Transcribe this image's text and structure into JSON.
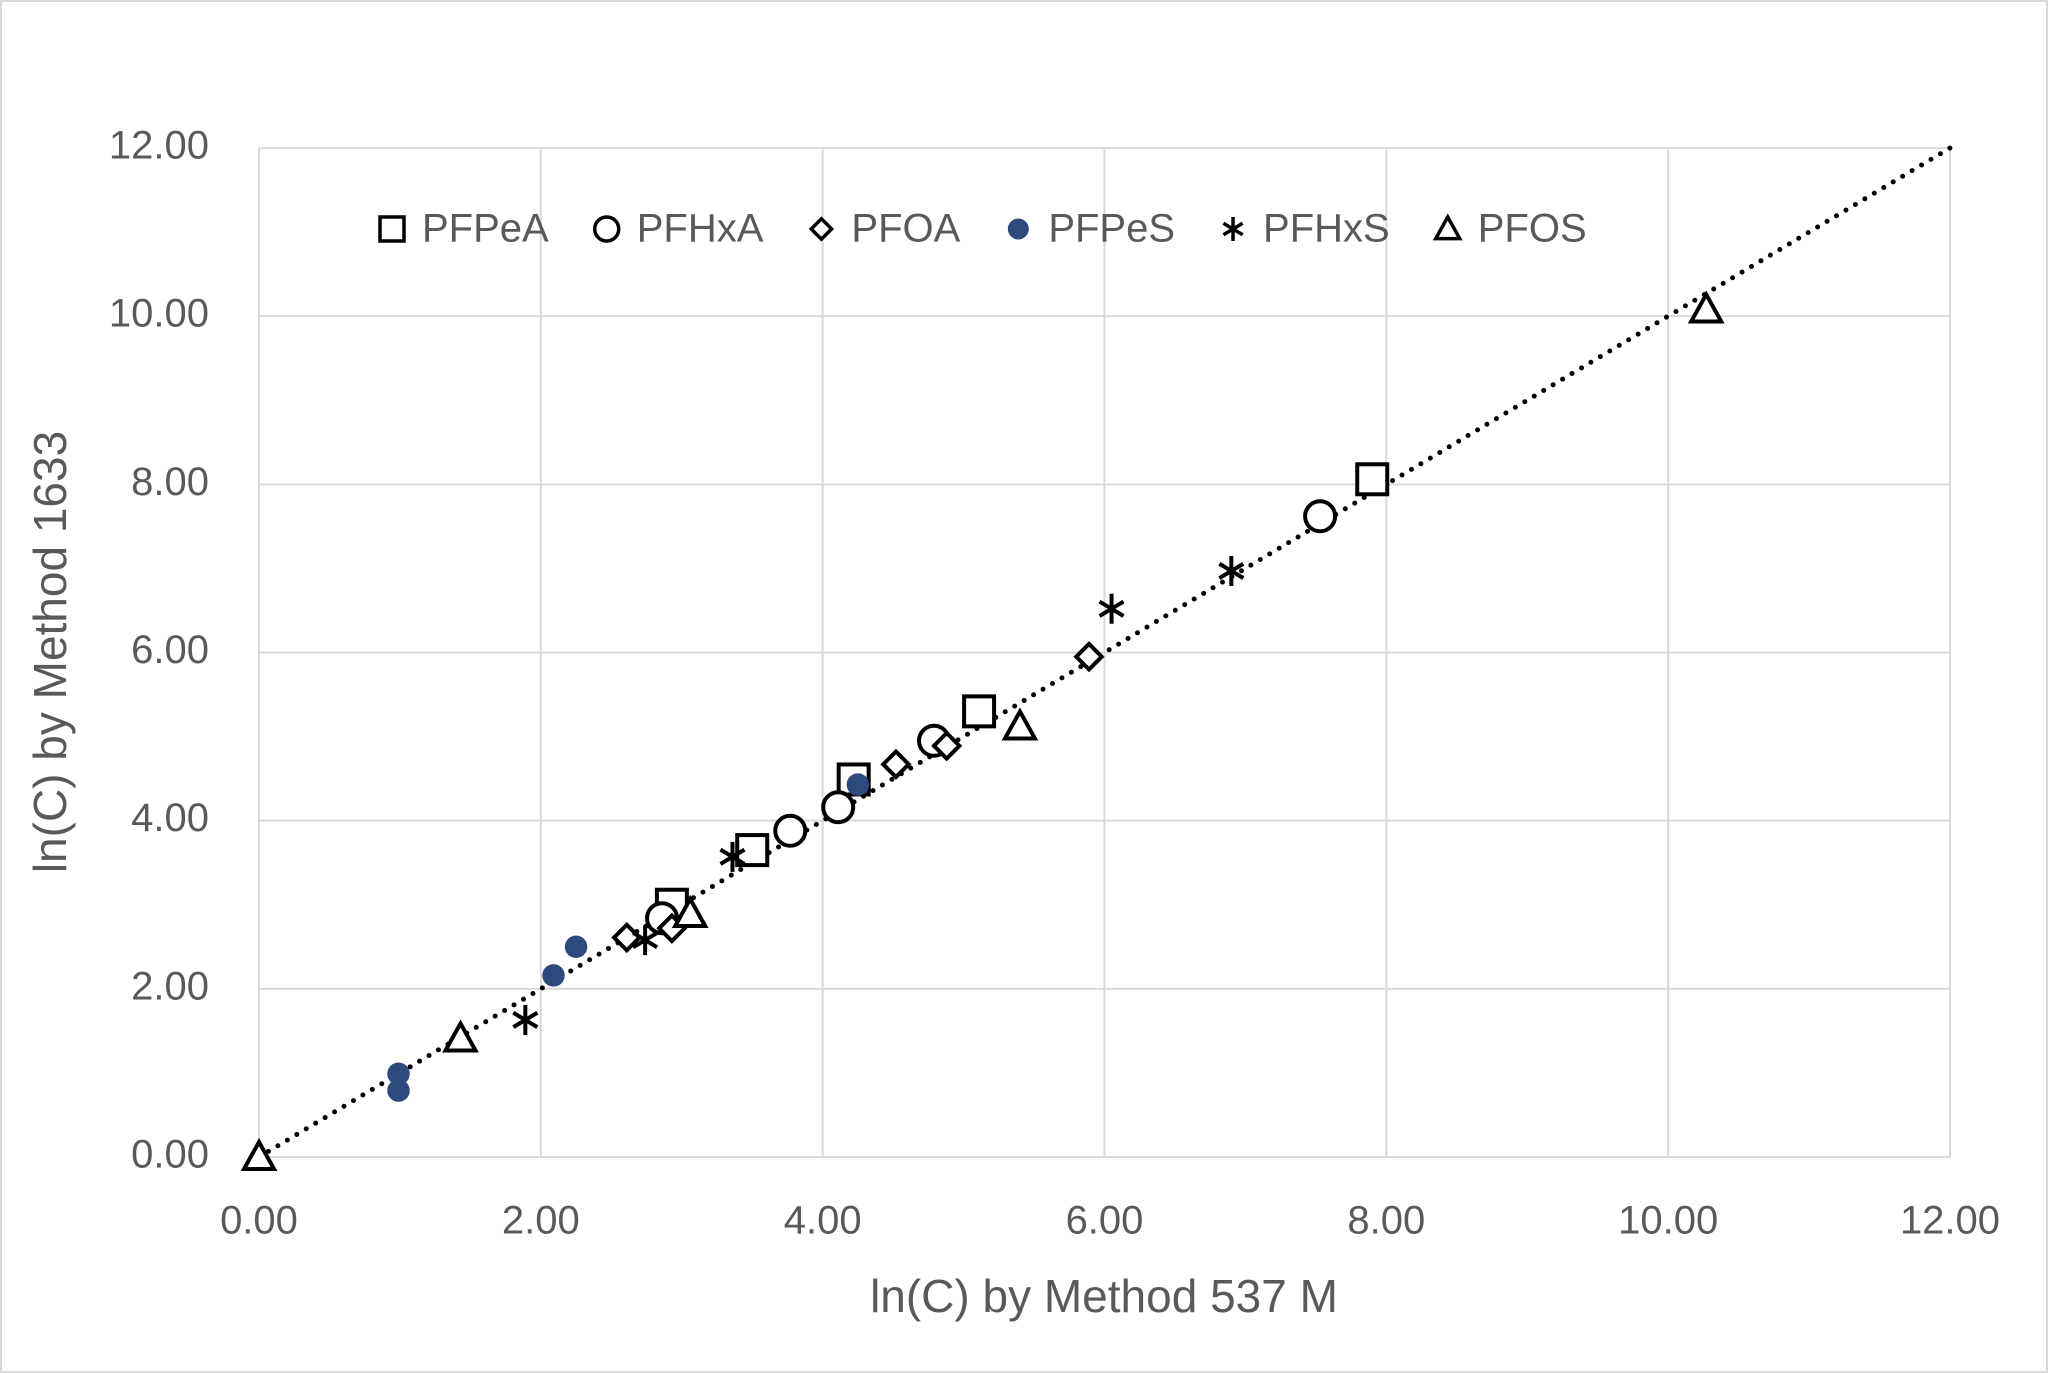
{
  "chart_data": {
    "type": "scatter",
    "x_label": "ln(C) by Method 537 M",
    "y_label": "ln(C) by Method 1633",
    "xlim": [
      0,
      12
    ],
    "ylim": [
      0,
      12
    ],
    "xticks": [
      {
        "value": 0,
        "label": "0.00"
      },
      {
        "value": 2,
        "label": "2.00"
      },
      {
        "value": 4,
        "label": "4.00"
      },
      {
        "value": 6,
        "label": "6.00"
      },
      {
        "value": 8,
        "label": "8.00"
      },
      {
        "value": 10,
        "label": "10.00"
      },
      {
        "value": 12,
        "label": "12.00"
      }
    ],
    "yticks": [
      {
        "value": 0,
        "label": "0.00"
      },
      {
        "value": 2,
        "label": "2.00"
      },
      {
        "value": 4,
        "label": "4.00"
      },
      {
        "value": 6,
        "label": "6.00"
      },
      {
        "value": 8,
        "label": "8.00"
      },
      {
        "value": 10,
        "label": "10.00"
      },
      {
        "value": 12,
        "label": "12.00"
      }
    ],
    "grid": true,
    "legend": "top",
    "trendline": "dotted",
    "series": [
      {
        "name": "PFPeA",
        "marker": "square",
        "color": "#000000",
        "x": [
          2.93,
          3.5,
          4.22,
          5.11,
          7.9
        ],
        "values": [
          3.0,
          3.65,
          4.49,
          5.3,
          8.06
        ]
      },
      {
        "name": "PFHxA",
        "marker": "circle",
        "color": "#000000",
        "x": [
          2.86,
          3.77,
          4.11,
          4.79,
          7.53
        ],
        "values": [
          2.84,
          3.88,
          4.16,
          4.95,
          7.62
        ]
      },
      {
        "name": "PFOA",
        "marker": "diamond",
        "color": "#000000",
        "x": [
          2.61,
          2.93,
          4.52,
          4.88,
          5.89
        ],
        "values": [
          2.61,
          2.72,
          4.67,
          4.89,
          5.95
        ]
      },
      {
        "name": "PFPeS",
        "marker": "dot",
        "color": "#2e4a7d",
        "x": [
          0.99,
          0.99,
          2.09,
          2.25,
          4.25
        ],
        "values": [
          0.99,
          0.79,
          2.16,
          2.5,
          4.43
        ]
      },
      {
        "name": "PFHxS",
        "marker": "star",
        "color": "#000000",
        "x": [
          1.89,
          2.74,
          3.36,
          6.05,
          6.9
        ],
        "values": [
          1.63,
          2.58,
          3.57,
          6.52,
          6.97
        ]
      },
      {
        "name": "PFOS",
        "marker": "triangle",
        "color": "#000000",
        "x": [
          0,
          1.43,
          3.06,
          5.4,
          10.27
        ],
        "values": [
          0,
          1.41,
          2.89,
          5.12,
          10.08
        ]
      }
    ]
  }
}
